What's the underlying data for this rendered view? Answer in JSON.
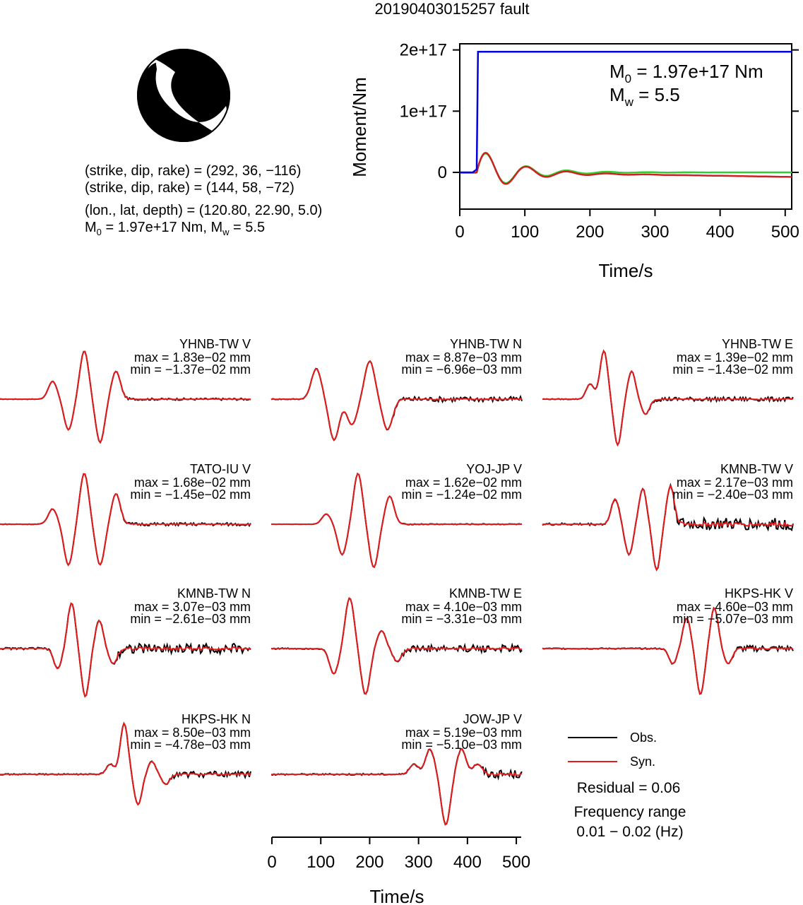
{
  "title": "20190403015257 fault",
  "mechanism": {
    "planes": [
      "(strike, dip, rake) = (292, 36, −116)",
      "(strike, dip, rake) = (144, 58, −72)"
    ],
    "location": "(lon., lat, depth) = (120.80, 22.90, 5.0)",
    "moment_text": "M",
    "moment_sub": "0",
    "moment_mid": " = 1.97e+17 Nm, M",
    "moment_sub2": "w",
    "moment_end": " = 5.5"
  },
  "moment_panel": {
    "m0_pre": "M",
    "m0_sub": "0",
    "m0_post": " = 1.97e+17 Nm",
    "mw_pre": "M",
    "mw_sub": "w",
    "mw_post": " = 5.5",
    "ylabel": "Moment/Nm",
    "xlabel": "Time/s",
    "yticks": [
      "0",
      "1e+17",
      "2e+17"
    ],
    "xticks": [
      "0",
      "100",
      "200",
      "300",
      "400",
      "500"
    ]
  },
  "waveform_axis": {
    "xlabel": "Time/s",
    "xticks": [
      "0",
      "100",
      "200",
      "300",
      "400",
      "500"
    ]
  },
  "legend": {
    "obs": "Obs.",
    "syn": "Syn.",
    "residual": "Residual = 0.06",
    "freq_title": "Frequency range",
    "freq_range": "0.01 − 0.02 (Hz)"
  },
  "colors": {
    "obs": "#000000",
    "syn": "#e41a1c",
    "moment_cumulative": "#0000dd",
    "moment_rate_green": "#33cc33",
    "moment_rate_red": "#cc2222"
  },
  "chart_data": [
    {
      "type": "line",
      "title": "",
      "xlabel": "Time/s",
      "ylabel": "Moment/Nm",
      "xlim": [
        0,
        510
      ],
      "ylim": [
        -6e+16,
        2.1e+17
      ],
      "series": [
        {
          "name": "",
          "x": [
            0,
            20,
            26,
            28,
            510
          ],
          "y": [
            0,
            0,
            5000000000000000.0,
            1.97e+17,
            1.97e+17
          ]
        }
      ]
    },
    {
      "type": "line",
      "title": "",
      "xlabel": "Time/s",
      "xlim": [
        0,
        510
      ],
      "stations": [
        {
          "name": "YHNB-TW V",
          "max": "max = 1.83e−02 mm",
          "min": "min = −1.37e−02 mm"
        },
        {
          "name": "YHNB-TW N",
          "max": "max = 8.87e−03 mm",
          "min": "min = −6.96e−03 mm"
        },
        {
          "name": "YHNB-TW E",
          "max": "max = 1.39e−02 mm",
          "min": "min = −1.43e−02 mm"
        },
        {
          "name": "TATO-IU V",
          "max": "max = 1.68e−02 mm",
          "min": "min = −1.45e−02 mm"
        },
        {
          "name": "YOJ-JP V",
          "max": "max = 1.62e−02 mm",
          "min": "min = −1.24e−02 mm"
        },
        {
          "name": "KMNB-TW V",
          "max": "max = 2.17e−03 mm",
          "min": "min = −2.40e−03 mm"
        },
        {
          "name": "KMNB-TW N",
          "max": "max = 3.07e−03 mm",
          "min": "min = −2.61e−03 mm"
        },
        {
          "name": "KMNB-TW E",
          "max": "max = 4.10e−03 mm",
          "min": "min = −3.31e−03 mm"
        },
        {
          "name": "HKPS-HK V",
          "max": "max = 4.60e−03 mm",
          "min": "min = −5.07e−03 mm"
        },
        {
          "name": "HKPS-HK N",
          "max": "max = 8.50e−03 mm",
          "min": "min = −4.78e−03 mm"
        },
        {
          "name": "JOW-JP V",
          "max": "max = 5.19e−03 mm",
          "min": "min = −5.10e−03 mm"
        }
      ]
    }
  ]
}
